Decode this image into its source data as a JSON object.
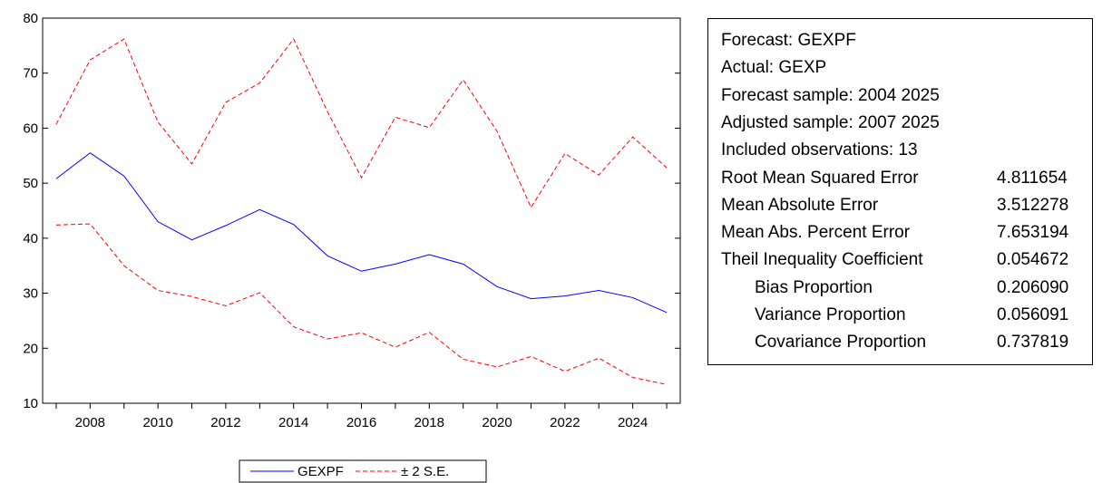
{
  "chart_data": {
    "type": "line",
    "title": "",
    "xlabel": "",
    "ylabel": "",
    "xlim": [
      2006.6,
      2025.4
    ],
    "ylim": [
      10,
      80
    ],
    "yticks": [
      10,
      20,
      30,
      40,
      50,
      60,
      70,
      80
    ],
    "xticks": [
      2008,
      2010,
      2012,
      2014,
      2016,
      2018,
      2020,
      2022,
      2024
    ],
    "grid": false,
    "legend_position": "bottom",
    "x": [
      2007,
      2008,
      2009,
      2010,
      2011,
      2012,
      2013,
      2014,
      2015,
      2016,
      2017,
      2018,
      2019,
      2020,
      2021,
      2022,
      2023,
      2024,
      2025
    ],
    "series": [
      {
        "name": "GEXPF",
        "color": "#0000ff",
        "dash": "solid",
        "values": [
          50.8,
          55.5,
          51.3,
          43.0,
          39.7,
          42.3,
          45.2,
          42.5,
          36.8,
          34.0,
          35.3,
          37.0,
          35.3,
          31.2,
          29.0,
          29.5,
          30.5,
          29.2,
          26.5
        ]
      },
      {
        "name": "± 2 S.E.",
        "color": "#ff0000",
        "dash": "dashed",
        "role": "upper",
        "values": [
          60.7,
          72.4,
          76.2,
          61.1,
          53.5,
          64.7,
          68.2,
          76.2,
          63.0,
          51.0,
          62.0,
          60.1,
          68.8,
          59.4,
          45.6,
          55.4,
          51.5,
          58.4,
          52.8
        ]
      },
      {
        "name": "",
        "color": "#ff0000",
        "dash": "dashed",
        "role": "lower",
        "values": [
          42.4,
          42.6,
          35.0,
          30.5,
          29.4,
          27.7,
          30.1,
          23.9,
          21.7,
          22.8,
          20.2,
          22.9,
          18.0,
          16.6,
          18.5,
          15.8,
          18.2,
          14.7,
          13.4
        ]
      }
    ],
    "legend": [
      {
        "label": "GEXPF",
        "color": "#0000ff",
        "dash": "solid"
      },
      {
        "label": "± 2 S.E.",
        "color": "#ff0000",
        "dash": "dashed"
      }
    ]
  },
  "stats": {
    "header_lines": [
      "Forecast: GEXPF",
      "Actual: GEXP",
      "Forecast sample: 2004 2025",
      "Adjusted sample: 2007 2025",
      "Included observations: 13"
    ],
    "metrics": [
      {
        "label": "Root Mean Squared Error",
        "value": "4.811654",
        "indent": false
      },
      {
        "label": "Mean Absolute Error",
        "value": "3.512278",
        "indent": false
      },
      {
        "label": "Mean Abs. Percent Error",
        "value": "7.653194",
        "indent": false
      },
      {
        "label": "Theil Inequality Coefficient",
        "value": "0.054672",
        "indent": false
      },
      {
        "label": "Bias Proportion",
        "value": "0.206090",
        "indent": true
      },
      {
        "label": "Variance Proportion",
        "value": "0.056091",
        "indent": true
      },
      {
        "label": "Covariance Proportion",
        "value": "0.737819",
        "indent": true
      }
    ]
  }
}
